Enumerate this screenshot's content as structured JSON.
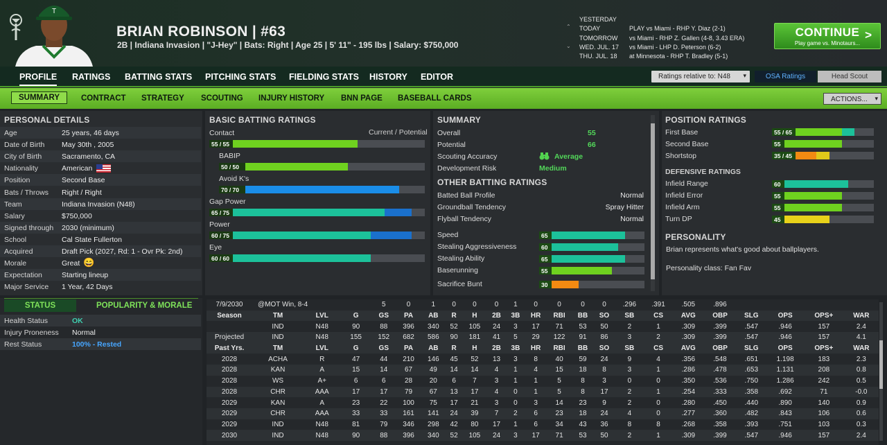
{
  "player": {
    "name": "BRIAN ROBINSON  |  #63",
    "info": "2B | Indiana Invasion | \"J-Hey\" | Bats: Right | Age 25 | 5' 11\" - 195 lbs | Salary: $750,000"
  },
  "schedule": [
    {
      "day": "YESTERDAY",
      "game": ""
    },
    {
      "day": "TODAY",
      "game": "PLAY vs Miami - RHP Y. Diaz (2-1)"
    },
    {
      "day": "TOMORROW",
      "game": "vs Miami - RHP Z. Gallen (4-8, 3.43 ERA)"
    },
    {
      "day": "WED. JUL. 17",
      "game": "vs Miami - LHP D. Peterson (6-2)"
    },
    {
      "day": "THU. JUL. 18",
      "game": "at Minnesota - RHP T. Bradley (5-1)"
    }
  ],
  "continue": {
    "label": "CONTINUE",
    "sub": "Play game vs. Minotaurs...",
    "chevron": ">"
  },
  "nav1": [
    "PROFILE",
    "RATINGS",
    "BATTING STATS",
    "PITCHING STATS",
    "FIELDING STATS",
    "HISTORY",
    "EDITOR"
  ],
  "ratings_relative": "Ratings relative to: N48",
  "osa": "OSA Ratings",
  "head_scout": "Head Scout",
  "nav2": [
    "SUMMARY",
    "CONTRACT",
    "STRATEGY",
    "SCOUTING",
    "INJURY HISTORY",
    "BNN PAGE",
    "BASEBALL CARDS"
  ],
  "actions": "ACTIONS...",
  "personal": {
    "title": "PERSONAL DETAILS",
    "rows": [
      [
        "Age",
        "25 years, 46 days"
      ],
      [
        "Date of Birth",
        "May 30th , 2005"
      ],
      [
        "City of Birth",
        "Sacramento, CA"
      ],
      [
        "Nationality",
        "American"
      ],
      [
        "Position",
        "Second Base"
      ],
      [
        "Bats / Throws",
        "Right / Right"
      ],
      [
        "Team",
        "Indiana Invasion (N48)"
      ],
      [
        "Salary",
        "$750,000"
      ],
      [
        "Signed through",
        "2030 (minimum)"
      ],
      [
        "School",
        "Cal State Fullerton"
      ],
      [
        "Acquired",
        "Draft Pick (2027, Rd: 1 - Ovr Pk: 2nd)"
      ],
      [
        "Morale",
        "Great"
      ],
      [
        "Expectation",
        "Starting lineup"
      ],
      [
        "Major Service",
        "1 Year, 42 Days"
      ]
    ]
  },
  "status": {
    "tab1": "STATUS",
    "tab2": "POPULARITY & MORALE",
    "rows": [
      [
        "Health Status",
        "OK"
      ],
      [
        "Injury Proneness",
        "Normal"
      ],
      [
        "Rest Status",
        "100% - Rested"
      ]
    ]
  },
  "batting": {
    "title": "BASIC BATTING RATINGS",
    "header": "Current / Potential",
    "items": [
      {
        "name": "Contact",
        "label": "55 / 55",
        "cur": 55,
        "pot": 55,
        "color": "#6fd11f",
        "indent": false
      },
      {
        "name": "BABIP",
        "label": "50 / 50",
        "cur": 50,
        "pot": 50,
        "color": "#6fd11f",
        "indent": true
      },
      {
        "name": "Avoid K's",
        "label": "70 / 70",
        "cur": 70,
        "pot": 70,
        "color": "#1a8de8",
        "indent": true
      },
      {
        "name": "Gap Power",
        "label": "65 / 75",
        "cur": 65,
        "pot": 75,
        "color": "#1cc19a",
        "indent": false
      },
      {
        "name": "Power",
        "label": "60 / 75",
        "cur": 60,
        "pot": 75,
        "color": "#1cc19a",
        "indent": false
      },
      {
        "name": "Eye",
        "label": "60 / 60",
        "cur": 60,
        "pot": 60,
        "color": "#1cc19a",
        "indent": false
      }
    ]
  },
  "summary": {
    "title": "SUMMARY",
    "overall_label": "Overall",
    "overall": "55",
    "potential_label": "Potential",
    "potential": "66",
    "scouting_label": "Scouting Accuracy",
    "scouting": "Average",
    "devrisk_label": "Development Risk",
    "devrisk": "Medium"
  },
  "other": {
    "title": "OTHER BATTING RATINGS",
    "text": [
      [
        "Batted Ball Profile",
        "Normal"
      ],
      [
        "Groundball Tendency",
        "Spray Hitter"
      ],
      [
        "Flyball Tendency",
        "Normal"
      ]
    ],
    "bars": [
      {
        "name": "Speed",
        "val": 65,
        "color": "#1cc19a"
      },
      {
        "name": "Stealing Aggressiveness",
        "val": 60,
        "color": "#1cc19a"
      },
      {
        "name": "Stealing Ability",
        "val": 65,
        "color": "#1cc19a"
      },
      {
        "name": "Baserunning",
        "val": 55,
        "color": "#6fd11f"
      },
      {
        "name": "Sacrifice Bunt",
        "val": 30,
        "color": "#f28a12"
      }
    ]
  },
  "position": {
    "title": "POSITION RATINGS",
    "items": [
      {
        "name": "First Base",
        "label": "55 / 65",
        "cur": 55,
        "pot": 65,
        "color": "#6fd11f",
        "pcolor": "#1cc19a"
      },
      {
        "name": "Second Base",
        "label": "55",
        "cur": 55,
        "pot": 55,
        "color": "#6fd11f",
        "pcolor": "#6fd11f"
      },
      {
        "name": "Shortstop",
        "label": "35 / 45",
        "cur": 35,
        "pot": 45,
        "color": "#f28a12",
        "pcolor": "#e0c81a"
      }
    ]
  },
  "defense": {
    "title": "DEFENSIVE RATINGS",
    "items": [
      {
        "name": "Infield Range",
        "val": 60,
        "color": "#1cc19a"
      },
      {
        "name": "Infield Error",
        "val": 55,
        "color": "#6fd11f"
      },
      {
        "name": "Infield Arm",
        "val": 55,
        "color": "#6fd11f"
      },
      {
        "name": "Turn DP",
        "val": 45,
        "color": "#e8d21a"
      }
    ]
  },
  "personality": {
    "title": "PERSONALITY",
    "text": "Brian represents what's good about ballplayers.",
    "class": "Personality class: Fan Fav"
  },
  "stats": {
    "game": [
      "7/9/2030",
      "@MOT Win, 8-4",
      "5",
      "0",
      "1",
      "0",
      "0",
      "0",
      "1",
      "0",
      "0",
      "0",
      "0",
      ".296",
      ".391",
      ".505",
      ".896"
    ],
    "header": [
      "Season",
      "TM",
      "LVL",
      "G",
      "GS",
      "PA",
      "AB",
      "R",
      "H",
      "2B",
      "3B",
      "HR",
      "RBI",
      "BB",
      "SO",
      "SB",
      "CS",
      "AVG",
      "OBP",
      "SLG",
      "OPS",
      "OPS+",
      "WAR"
    ],
    "rows": [
      [
        "",
        "IND",
        "N48",
        "90",
        "88",
        "396",
        "340",
        "52",
        "105",
        "24",
        "3",
        "17",
        "71",
        "53",
        "50",
        "2",
        "1",
        ".309",
        ".399",
        ".547",
        ".946",
        "157",
        "2.4"
      ],
      [
        "Projected",
        "IND",
        "N48",
        "155",
        "152",
        "682",
        "586",
        "90",
        "181",
        "41",
        "5",
        "29",
        "122",
        "91",
        "86",
        "3",
        "2",
        ".309",
        ".399",
        ".547",
        ".946",
        "157",
        "4.1"
      ]
    ],
    "header2": [
      "Past Yrs.",
      "TM",
      "LVL",
      "G",
      "GS",
      "PA",
      "AB",
      "R",
      "H",
      "2B",
      "3B",
      "HR",
      "RBI",
      "BB",
      "SO",
      "SB",
      "CS",
      "AVG",
      "OBP",
      "SLG",
      "OPS",
      "OPS+",
      "WAR"
    ],
    "past": [
      [
        "2028",
        "ACHA",
        "R",
        "47",
        "44",
        "210",
        "146",
        "45",
        "52",
        "13",
        "3",
        "8",
        "40",
        "59",
        "24",
        "9",
        "4",
        ".356",
        ".548",
        ".651",
        "1.198",
        "183",
        "2.3"
      ],
      [
        "2028",
        "KAN",
        "A",
        "15",
        "14",
        "67",
        "49",
        "14",
        "14",
        "4",
        "1",
        "4",
        "15",
        "18",
        "8",
        "3",
        "1",
        ".286",
        ".478",
        ".653",
        "1.131",
        "208",
        "0.8"
      ],
      [
        "2028",
        "WS",
        "A+",
        "6",
        "6",
        "28",
        "20",
        "6",
        "7",
        "3",
        "1",
        "1",
        "5",
        "8",
        "3",
        "0",
        "0",
        ".350",
        ".536",
        ".750",
        "1.286",
        "242",
        "0.5"
      ],
      [
        "2028",
        "CHR",
        "AAA",
        "17",
        "17",
        "79",
        "67",
        "13",
        "17",
        "4",
        "0",
        "1",
        "5",
        "8",
        "17",
        "2",
        "1",
        ".254",
        ".333",
        ".358",
        ".692",
        "71",
        "-0.0"
      ],
      [
        "2029",
        "KAN",
        "A",
        "23",
        "22",
        "100",
        "75",
        "17",
        "21",
        "3",
        "0",
        "3",
        "14",
        "23",
        "9",
        "2",
        "0",
        ".280",
        ".450",
        ".440",
        ".890",
        "140",
        "0.9"
      ],
      [
        "2029",
        "CHR",
        "AAA",
        "33",
        "33",
        "161",
        "141",
        "24",
        "39",
        "7",
        "2",
        "6",
        "23",
        "18",
        "24",
        "4",
        "0",
        ".277",
        ".360",
        ".482",
        ".843",
        "106",
        "0.6"
      ],
      [
        "2029",
        "IND",
        "N48",
        "81",
        "79",
        "346",
        "298",
        "42",
        "80",
        "17",
        "1",
        "6",
        "34",
        "43",
        "36",
        "8",
        "8",
        ".268",
        ".358",
        ".393",
        ".751",
        "103",
        "0.3"
      ],
      [
        "2030",
        "IND",
        "N48",
        "90",
        "88",
        "396",
        "340",
        "52",
        "105",
        "24",
        "3",
        "17",
        "71",
        "53",
        "50",
        "2",
        "1",
        ".309",
        ".399",
        ".547",
        ".946",
        "157",
        "2.4"
      ]
    ]
  }
}
